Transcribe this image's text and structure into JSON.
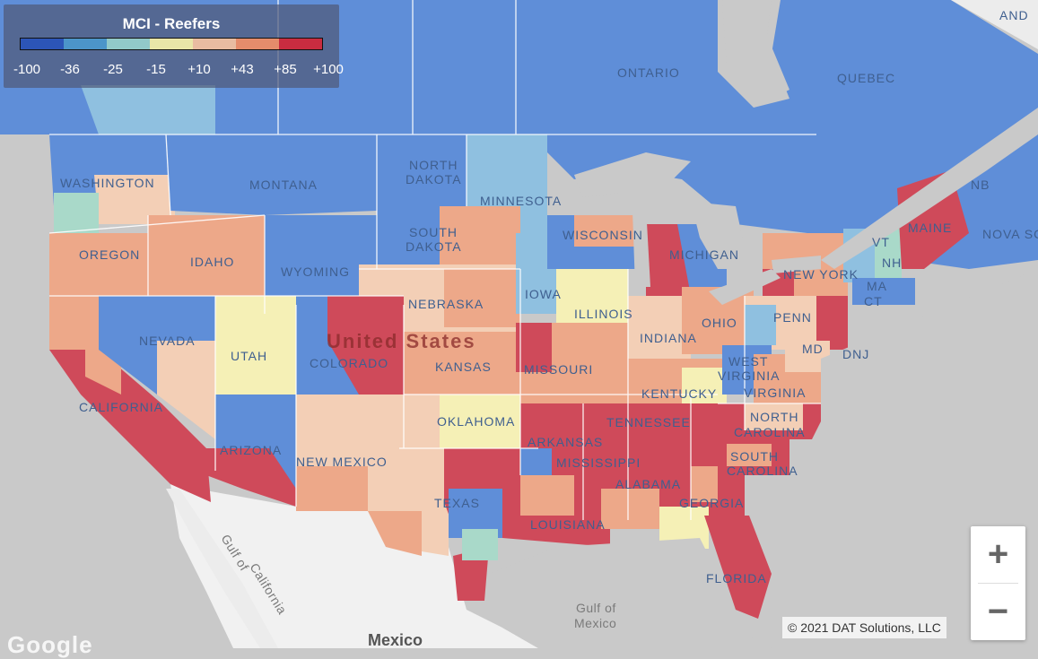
{
  "legend": {
    "title": "MCI - Reefers",
    "ticks": [
      "-100",
      "-36",
      "-25",
      "-15",
      "+10",
      "+43",
      "+85",
      "+100"
    ],
    "colors": [
      "#2c55b7",
      "#4c95c9",
      "#92c9c9",
      "#e9e6a8",
      "#e8bca1",
      "#e58c6b",
      "#c92c40"
    ]
  },
  "labels": {
    "ontario": "ONTARIO",
    "quebec": "QUEBEC",
    "newfoundland": "AND",
    "washington": "WASHINGTON",
    "montana": "MONTANA",
    "north_dakota_1": "NORTH",
    "north_dakota_2": "DAKOTA",
    "minnesota": "MINNESOTA",
    "south_dakota_1": "SOUTH",
    "south_dakota_2": "DAKOTA",
    "oregon": "OREGON",
    "idaho": "IDAHO",
    "wyoming": "WYOMING",
    "wisconsin": "WISCONSIN",
    "michigan": "MICHIGAN",
    "iowa": "IOWA",
    "nebraska": "NEBRASKA",
    "illinois": "ILLINOIS",
    "indiana": "INDIANA",
    "ohio": "OHIO",
    "penn": "PENN",
    "new_york": "NEW YORK",
    "vt": "VT",
    "nh": "NH",
    "maine": "MAINE",
    "nb": "NB",
    "nova_scotia": "NOVA SC",
    "ma": "MA",
    "ct": "CT",
    "nevada": "NEVADA",
    "utah": "UTAH",
    "colorado": "COLORADO",
    "kansas": "KANSAS",
    "missouri": "MISSOURI",
    "united_states": "United States",
    "west_virginia_1": "WEST",
    "west_virginia_2": "VIRGINIA",
    "virginia": "VIRGINIA",
    "kentucky": "KENTUCKY",
    "md": "MD",
    "dnj": "DNJ",
    "california": "CALIFORNIA",
    "arizona": "ARIZONA",
    "new_mexico": "NEW MEXICO",
    "oklahoma": "OKLAHOMA",
    "tennessee": "TENNESSEE",
    "north_carolina_1": "NORTH",
    "north_carolina_2": "CAROLINA",
    "south_carolina_1": "SOUTH",
    "south_carolina_2": "CAROLINA",
    "arkansas": "ARKANSAS",
    "mississippi": "MISSISSIPPI",
    "alabama": "ALABAMA",
    "georgia": "GEORGIA",
    "texas": "TEXAS",
    "louisiana": "LOUISIANA",
    "florida": "FLORIDA",
    "gulf_california_1": "Gulf of",
    "gulf_california_2": "California",
    "gulf_mexico_1": "Gulf of",
    "gulf_mexico_2": "Mexico",
    "mexico": "Mexico"
  },
  "zoom": {
    "in_label": "+",
    "out_label": "−"
  },
  "attribution": "© 2021 DAT Solutions, LLC",
  "logo": "Google"
}
